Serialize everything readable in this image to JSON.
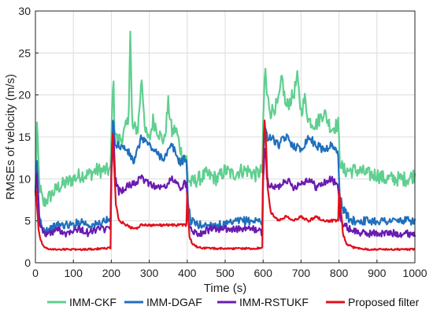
{
  "chart_data": {
    "type": "line",
    "xlabel": "Time (s)",
    "ylabel": "RMSEs of velocity (m/s)",
    "xlim": [
      0,
      1000
    ],
    "ylim": [
      0,
      30
    ],
    "xticks": [
      "0",
      "100",
      "200",
      "300",
      "400",
      "500",
      "600",
      "700",
      "800",
      "900",
      "1000"
    ],
    "yticks": [
      "0",
      "5",
      "10",
      "15",
      "20",
      "25",
      "30"
    ],
    "grid": true,
    "legend_position": "bottom",
    "series": [
      {
        "name": "IMM-CKF",
        "color": "#5fcf8f",
        "x": [
          0,
          4,
          10,
          20,
          40,
          60,
          80,
          100,
          120,
          140,
          160,
          180,
          198,
          200,
          205,
          208,
          215,
          230,
          245,
          250,
          255,
          270,
          280,
          290,
          300,
          310,
          320,
          330,
          340,
          350,
          360,
          370,
          380,
          390,
          398,
          402,
          410,
          430,
          450,
          480,
          500,
          520,
          540,
          560,
          580,
          598,
          600,
          605,
          610,
          620,
          640,
          650,
          660,
          680,
          690,
          700,
          710,
          720,
          740,
          760,
          780,
          798,
          802,
          810,
          830,
          850,
          880,
          900,
          920,
          950,
          980,
          1000
        ],
        "y": [
          8.5,
          16.5,
          9.5,
          7,
          8,
          9,
          9.5,
          10,
          10.5,
          10.5,
          11,
          11,
          11,
          14.5,
          23,
          16.5,
          14.5,
          15,
          17,
          27.5,
          16,
          16,
          22,
          15.5,
          14.5,
          17,
          16,
          15,
          14.5,
          19,
          15.5,
          16,
          14,
          12,
          12.5,
          10,
          9.5,
          10,
          10.5,
          10,
          11,
          10.5,
          11,
          11,
          10.5,
          11,
          16,
          23.5,
          20,
          18,
          19,
          22,
          18.5,
          20,
          22,
          18,
          19.5,
          17,
          16.5,
          18,
          16,
          16.5,
          12.5,
          11,
          11,
          11,
          10.5,
          10.5,
          10,
          10,
          10,
          10.5
        ]
      },
      {
        "name": "IMM-DGAF",
        "color": "#1f6fbd",
        "x": [
          0,
          4,
          10,
          20,
          40,
          60,
          80,
          100,
          120,
          140,
          160,
          180,
          198,
          200,
          205,
          210,
          220,
          240,
          260,
          280,
          300,
          320,
          340,
          360,
          380,
          398,
          402,
          410,
          430,
          460,
          500,
          540,
          580,
          598,
          600,
          605,
          610,
          620,
          640,
          660,
          680,
          700,
          720,
          740,
          760,
          780,
          798,
          802,
          810,
          830,
          860,
          900,
          940,
          980,
          1000
        ],
        "y": [
          8,
          12,
          5.5,
          4,
          4,
          4.5,
          4.5,
          4.5,
          5,
          4.5,
          4.5,
          5,
          5,
          11,
          18,
          14,
          14,
          13.5,
          12,
          15,
          14,
          13,
          12.5,
          14,
          12,
          12.5,
          7,
          5,
          4.5,
          4.5,
          4.5,
          5,
          5,
          5,
          11,
          16.5,
          15,
          15,
          14,
          15,
          14,
          13.5,
          15,
          14,
          13.5,
          14,
          13,
          8,
          6.5,
          5,
          5,
          5,
          5,
          5,
          5
        ]
      },
      {
        "name": "IMM-RSTUKF",
        "color": "#6a1bb0",
        "x": [
          0,
          4,
          10,
          20,
          40,
          60,
          80,
          100,
          120,
          140,
          160,
          180,
          198,
          200,
          205,
          210,
          220,
          240,
          260,
          280,
          300,
          320,
          340,
          360,
          380,
          398,
          402,
          410,
          430,
          460,
          500,
          540,
          580,
          598,
          600,
          605,
          610,
          620,
          640,
          660,
          680,
          700,
          720,
          740,
          760,
          780,
          798,
          802,
          810,
          830,
          860,
          900,
          940,
          980,
          1000
        ],
        "y": [
          8.5,
          11,
          5,
          3.5,
          3.5,
          4,
          3.5,
          4,
          4,
          3.5,
          4,
          4,
          4,
          10,
          16.5,
          10,
          8.5,
          9,
          9.5,
          10,
          9.5,
          9,
          9,
          10,
          9,
          9.5,
          5.5,
          4,
          3.5,
          4,
          4,
          4,
          4,
          3.5,
          9.5,
          15,
          10,
          9,
          9,
          10,
          9,
          9.5,
          10,
          9,
          9.5,
          10,
          9,
          6,
          4.5,
          4,
          3.5,
          3.5,
          3.5,
          3.5,
          3.5
        ]
      },
      {
        "name": "Proposed filter",
        "color": "#e0101c",
        "x": [
          0,
          2,
          8,
          15,
          25,
          40,
          60,
          100,
          140,
          180,
          198,
          200,
          203,
          206,
          212,
          220,
          240,
          260,
          280,
          300,
          320,
          340,
          360,
          380,
          398,
          400,
          402,
          406,
          415,
          430,
          460,
          500,
          540,
          580,
          598,
          600,
          603,
          607,
          612,
          620,
          640,
          660,
          680,
          700,
          720,
          740,
          760,
          780,
          798,
          800,
          805,
          810,
          820,
          840,
          880,
          920,
          960,
          1000
        ],
        "y": [
          8,
          8.5,
          4,
          2.5,
          1.8,
          1.6,
          1.6,
          1.6,
          1.6,
          1.7,
          1.8,
          10,
          16.5,
          13,
          7,
          5,
          4.5,
          4,
          4.5,
          4.5,
          4.5,
          4.5,
          4.5,
          4.5,
          4.5,
          8.5,
          6,
          3,
          2.2,
          1.8,
          1.7,
          1.7,
          1.7,
          1.7,
          1.8,
          11,
          17.5,
          15,
          9,
          6,
          5,
          5.5,
          5,
          5.5,
          5,
          5.5,
          5,
          5,
          5,
          8.5,
          6.5,
          3.5,
          2.2,
          1.8,
          1.6,
          1.6,
          1.6,
          1.6
        ]
      }
    ]
  }
}
